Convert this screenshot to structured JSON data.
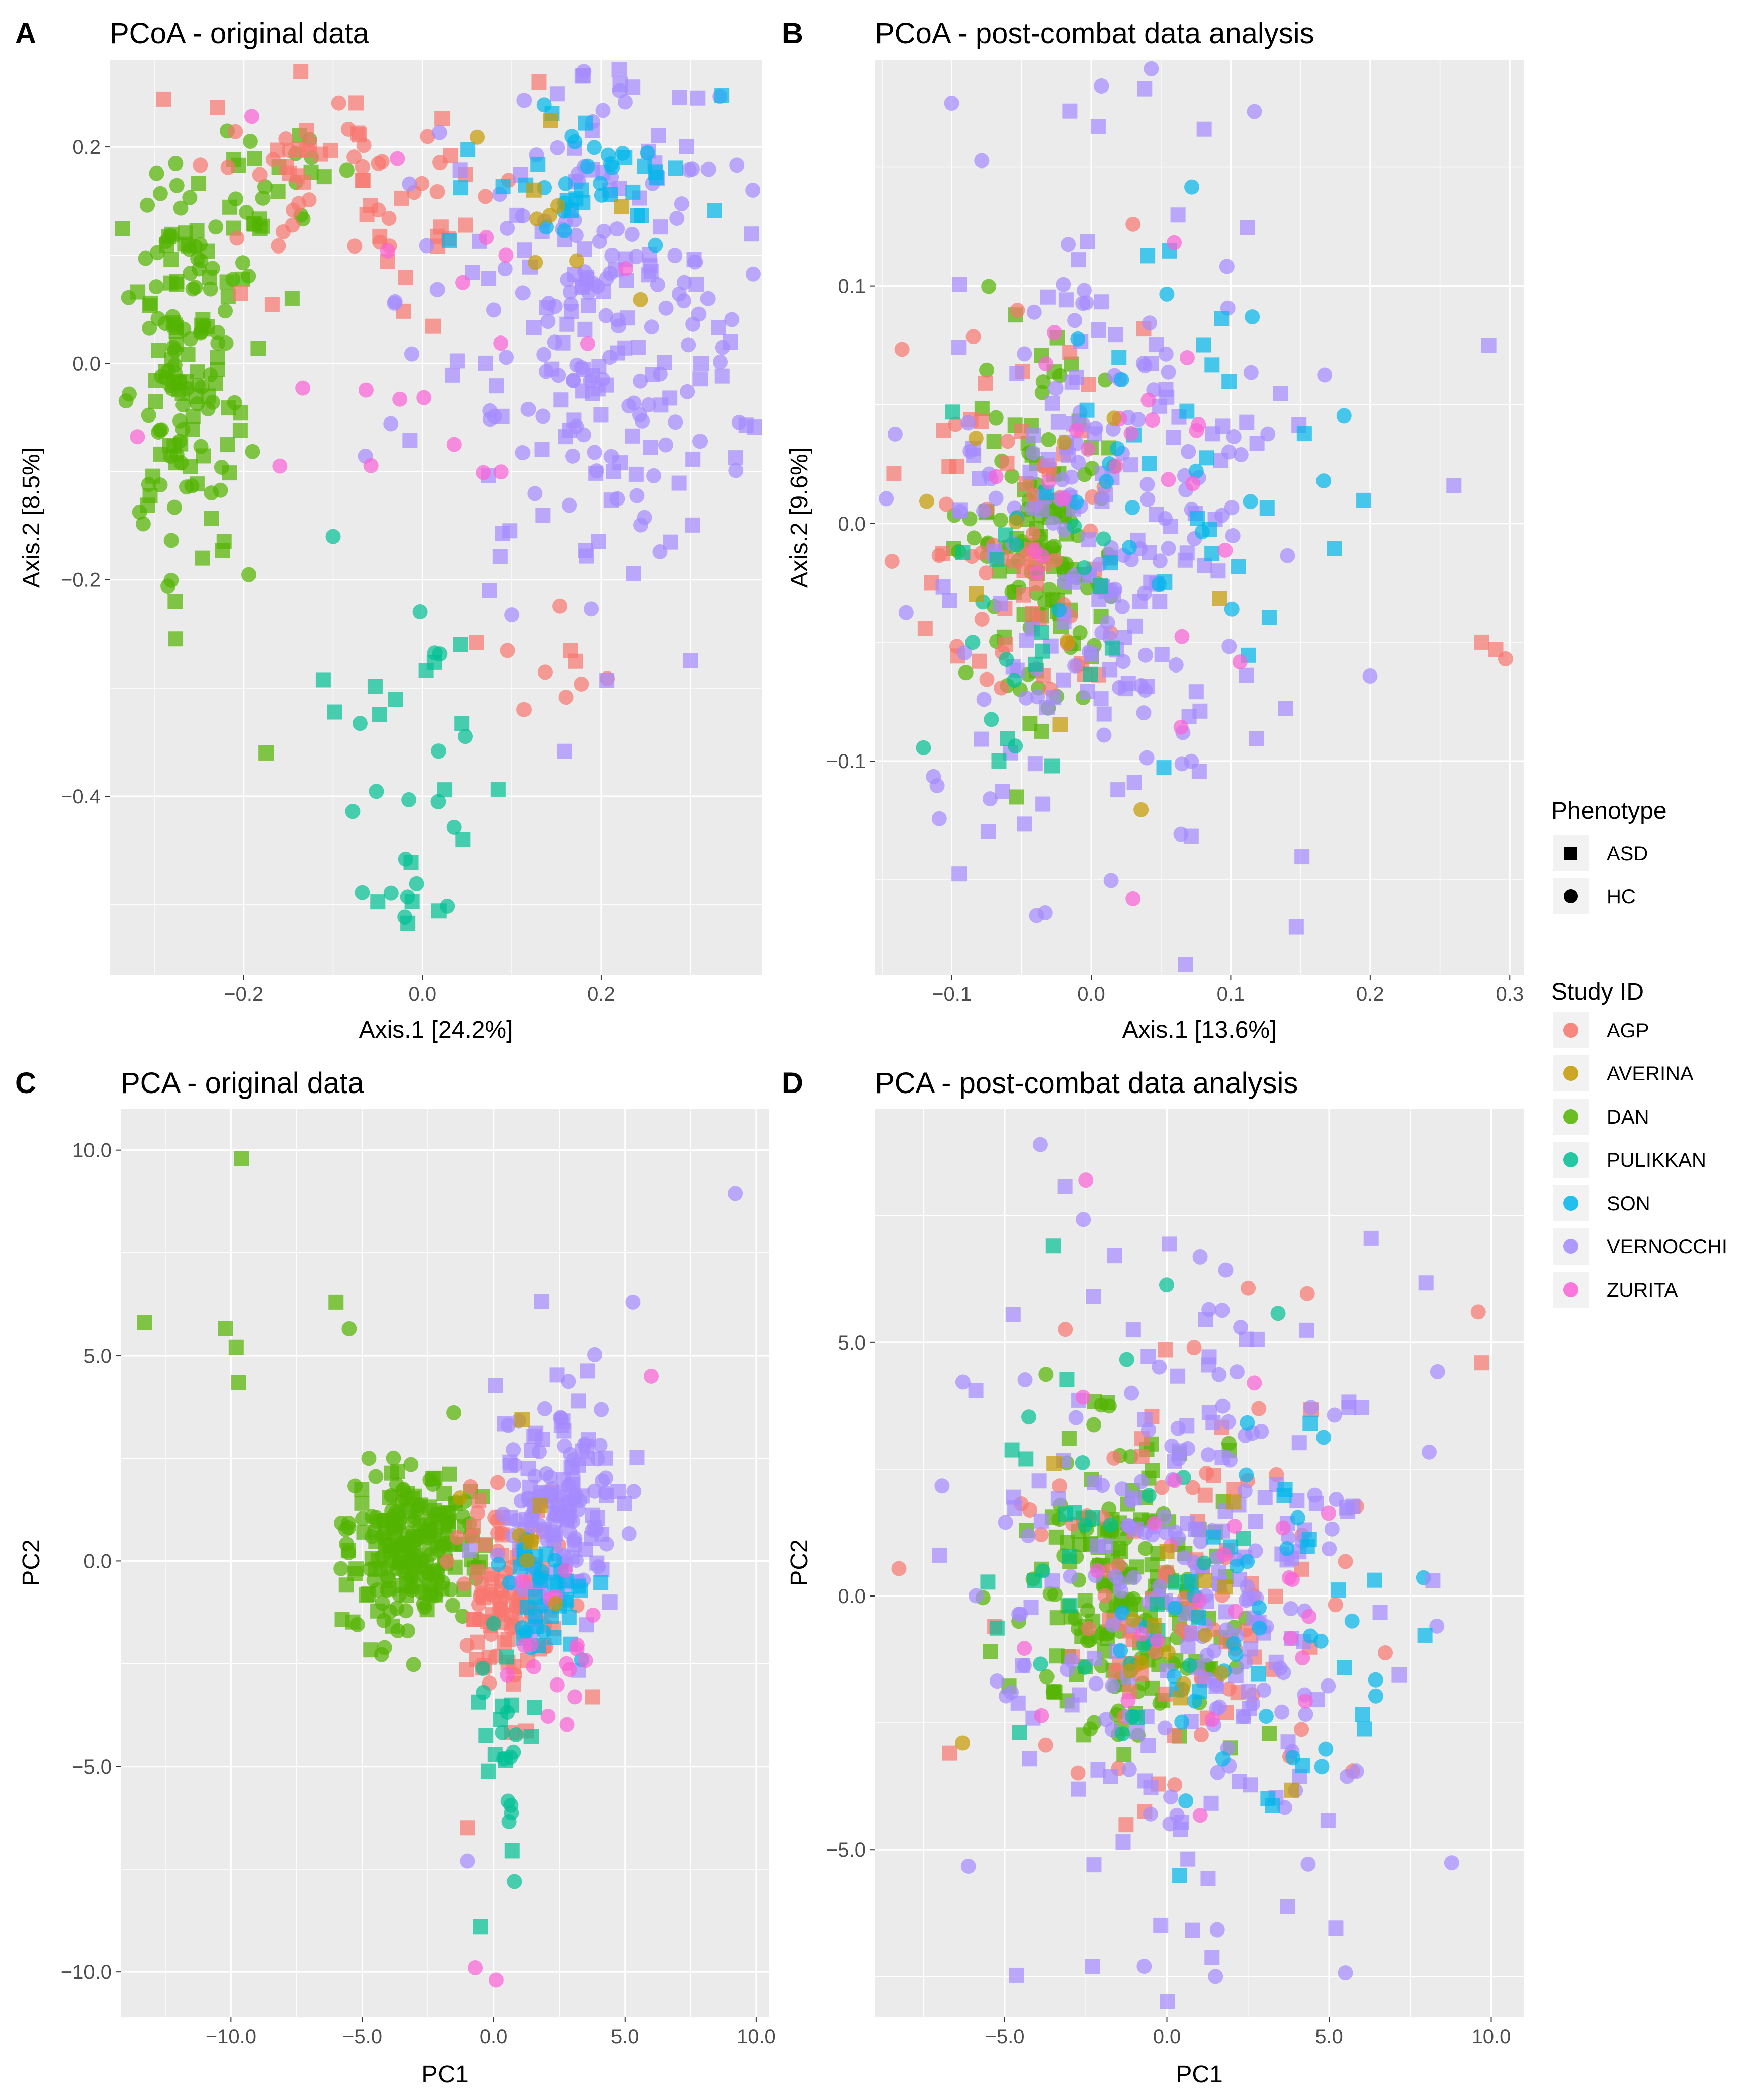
{
  "chart_data": [
    {
      "type": "scatter",
      "panel": "A",
      "title": "PCoA - original data",
      "xlabel": "Axis.1   [24.2%]",
      "ylabel": "Axis.2   [8.5%]",
      "xlim": [
        -0.35,
        0.38
      ],
      "ylim": [
        -0.565,
        0.28
      ],
      "xticks": [
        -0.2,
        0.0,
        0.2
      ],
      "xtick_labels": [
        "−0.2",
        "0.0",
        "0.2"
      ],
      "yticks": [
        0.2,
        0.0,
        -0.2,
        -0.4
      ],
      "ytick_labels": [
        "0.2",
        "0.0",
        "−0.2",
        "−0.4"
      ],
      "clusters": [
        {
          "study": "DAN",
          "shape": "mix",
          "cx": -0.265,
          "cy": 0.0,
          "sx": 0.035,
          "sy": 0.09,
          "n": 160
        },
        {
          "study": "DAN",
          "shape": "mix",
          "cx": -0.18,
          "cy": 0.15,
          "sx": 0.04,
          "sy": 0.04,
          "n": 30
        },
        {
          "study": "AGP",
          "shape": "mix",
          "cx": -0.08,
          "cy": 0.16,
          "sx": 0.08,
          "sy": 0.05,
          "n": 70
        },
        {
          "study": "AGP",
          "shape": "mix",
          "cx": 0.15,
          "cy": -0.27,
          "sx": 0.03,
          "sy": 0.03,
          "n": 10
        },
        {
          "study": "VERNOCCHI",
          "shape": "mix",
          "cx": 0.2,
          "cy": 0.05,
          "sx": 0.09,
          "sy": 0.13,
          "n": 260
        },
        {
          "study": "SON",
          "shape": "mix",
          "cx": 0.2,
          "cy": 0.17,
          "sx": 0.07,
          "sy": 0.04,
          "n": 45
        },
        {
          "study": "PULIKKAN",
          "shape": "mix",
          "cx": -0.02,
          "cy": -0.4,
          "sx": 0.04,
          "sy": 0.09,
          "n": 35
        },
        {
          "study": "ZURITA",
          "shape": "circle",
          "cx": 0.0,
          "cy": 0.05,
          "sx": 0.12,
          "sy": 0.1,
          "n": 20
        },
        {
          "study": "AVERINA",
          "shape": "mix",
          "cx": 0.15,
          "cy": 0.15,
          "sx": 0.05,
          "sy": 0.05,
          "n": 10
        }
      ],
      "points": [
        {
          "x": 0.13,
          "y": 0.26,
          "study": "AGP",
          "shape": "square"
        },
        {
          "x": -0.1,
          "y": -0.16,
          "study": "PULIKKAN",
          "shape": "circle"
        },
        {
          "x": -0.175,
          "y": -0.36,
          "study": "DAN",
          "shape": "square"
        },
        {
          "x": 0.045,
          "y": -0.44,
          "study": "PULIKKAN",
          "shape": "square"
        }
      ]
    },
    {
      "type": "scatter",
      "panel": "B",
      "title": "PCoA - post-combat data analysis",
      "xlabel": "Axis.1   [13.6%]",
      "ylabel": "Axis.2   [9.6%]",
      "xlim": [
        -0.155,
        0.31
      ],
      "ylim": [
        -0.19,
        0.195
      ],
      "xticks": [
        -0.1,
        0.0,
        0.1,
        0.2,
        0.3
      ],
      "xtick_labels": [
        "−0.1",
        "0.0",
        "0.1",
        "0.2",
        "0.3"
      ],
      "yticks": [
        0.1,
        0.0,
        -0.1
      ],
      "ytick_labels": [
        "0.1",
        "0.0",
        "−0.1"
      ],
      "clusters": [
        {
          "study": "DAN",
          "shape": "mix",
          "cx": -0.04,
          "cy": -0.01,
          "sx": 0.025,
          "sy": 0.035,
          "n": 140
        },
        {
          "study": "AGP",
          "shape": "mix",
          "cx": -0.05,
          "cy": 0.0,
          "sx": 0.035,
          "sy": 0.04,
          "n": 75
        },
        {
          "study": "VERNOCCHI",
          "shape": "mix",
          "cx": 0.02,
          "cy": 0.0,
          "sx": 0.07,
          "sy": 0.07,
          "n": 250
        },
        {
          "study": "SON",
          "shape": "mix",
          "cx": 0.05,
          "cy": 0.02,
          "sx": 0.05,
          "sy": 0.05,
          "n": 45
        },
        {
          "study": "PULIKKAN",
          "shape": "mix",
          "cx": -0.04,
          "cy": -0.06,
          "sx": 0.03,
          "sy": 0.03,
          "n": 25
        },
        {
          "study": "ZURITA",
          "shape": "circle",
          "cx": 0.0,
          "cy": 0.02,
          "sx": 0.06,
          "sy": 0.05,
          "n": 25
        },
        {
          "study": "AVERINA",
          "shape": "mix",
          "cx": 0.0,
          "cy": -0.02,
          "sx": 0.06,
          "sy": 0.04,
          "n": 10
        }
      ],
      "points": [
        {
          "x": 0.28,
          "y": -0.05,
          "study": "AGP",
          "shape": "square"
        },
        {
          "x": 0.29,
          "y": -0.053,
          "study": "AGP",
          "shape": "square"
        },
        {
          "x": 0.297,
          "y": -0.057,
          "study": "AGP",
          "shape": "circle"
        },
        {
          "x": 0.285,
          "y": 0.075,
          "study": "VERNOCCHI",
          "shape": "square"
        },
        {
          "x": 0.26,
          "y": 0.016,
          "study": "VERNOCCHI",
          "shape": "square"
        },
        {
          "x": -0.1,
          "y": 0.177,
          "study": "VERNOCCHI",
          "shape": "circle"
        },
        {
          "x": 0.03,
          "y": -0.158,
          "study": "ZURITA",
          "shape": "circle"
        },
        {
          "x": 0.03,
          "y": 0.126,
          "study": "AGP",
          "shape": "circle"
        }
      ]
    },
    {
      "type": "scatter",
      "panel": "C",
      "title": "PCA - original data",
      "xlabel": "PC1",
      "ylabel": "PC2",
      "xlim": [
        -14.2,
        10.5
      ],
      "ylim": [
        -11.1,
        11.0
      ],
      "xticks": [
        -10.0,
        -5.0,
        0.0,
        5.0,
        10.0
      ],
      "xtick_labels": [
        "−10.0",
        "−5.0",
        "0.0",
        "5.0",
        "10.0"
      ],
      "yticks": [
        10.0,
        5.0,
        0.0,
        -5.0,
        -10.0
      ],
      "ytick_labels": [
        "10.0",
        "5.0",
        "0.0",
        "−5.0",
        "−10.0"
      ],
      "clusters": [
        {
          "study": "DAN",
          "shape": "mix",
          "cx": -3.2,
          "cy": 0.3,
          "sx": 1.2,
          "sy": 1.0,
          "n": 220
        },
        {
          "study": "AGP",
          "shape": "mix",
          "cx": 0.6,
          "cy": -0.8,
          "sx": 1.0,
          "sy": 1.1,
          "n": 110
        },
        {
          "study": "VERNOCCHI",
          "shape": "mix",
          "cx": 2.5,
          "cy": 1.4,
          "sx": 1.2,
          "sy": 1.3,
          "n": 160
        },
        {
          "study": "SON",
          "shape": "mix",
          "cx": 2.2,
          "cy": -0.8,
          "sx": 0.9,
          "sy": 0.8,
          "n": 40
        },
        {
          "study": "PULIKKAN",
          "shape": "mix",
          "cx": 0.4,
          "cy": -4.5,
          "sx": 0.6,
          "sy": 1.2,
          "n": 25
        },
        {
          "study": "ZURITA",
          "shape": "circle",
          "cx": 2.0,
          "cy": -2.0,
          "sx": 1.2,
          "sy": 1.2,
          "n": 18
        },
        {
          "study": "AVERINA",
          "shape": "mix",
          "cx": 1.5,
          "cy": 0.8,
          "sx": 1.0,
          "sy": 0.8,
          "n": 8
        }
      ],
      "points": [
        {
          "x": -9.6,
          "y": 9.8,
          "study": "DAN",
          "shape": "square"
        },
        {
          "x": -13.3,
          "y": 5.8,
          "study": "DAN",
          "shape": "square"
        },
        {
          "x": -10.2,
          "y": 5.65,
          "study": "DAN",
          "shape": "square"
        },
        {
          "x": -9.8,
          "y": 5.2,
          "study": "DAN",
          "shape": "square"
        },
        {
          "x": -9.7,
          "y": 4.35,
          "study": "DAN",
          "shape": "square"
        },
        {
          "x": -6.0,
          "y": 6.3,
          "study": "DAN",
          "shape": "square"
        },
        {
          "x": -5.5,
          "y": 5.65,
          "study": "DAN",
          "shape": "circle"
        },
        {
          "x": 9.2,
          "y": 8.95,
          "study": "VERNOCCHI",
          "shape": "circle"
        },
        {
          "x": 5.3,
          "y": 6.3,
          "study": "VERNOCCHI",
          "shape": "circle"
        },
        {
          "x": 6.0,
          "y": 4.5,
          "study": "ZURITA",
          "shape": "circle"
        },
        {
          "x": 0.8,
          "y": -7.8,
          "study": "PULIKKAN",
          "shape": "circle"
        },
        {
          "x": -0.5,
          "y": -8.9,
          "study": "PULIKKAN",
          "shape": "square"
        },
        {
          "x": 0.1,
          "y": -10.2,
          "study": "ZURITA",
          "shape": "circle"
        },
        {
          "x": -0.7,
          "y": -9.9,
          "study": "ZURITA",
          "shape": "circle"
        },
        {
          "x": -1.0,
          "y": -6.5,
          "study": "AGP",
          "shape": "square"
        },
        {
          "x": -1.0,
          "y": -7.3,
          "study": "VERNOCCHI",
          "shape": "circle"
        }
      ]
    },
    {
      "type": "scatter",
      "panel": "D",
      "title": "PCA - post-combat data analysis",
      "xlabel": "PC1",
      "ylabel": "PC2",
      "xlim": [
        -9.0,
        11.0
      ],
      "ylim": [
        -8.3,
        9.6
      ],
      "xticks": [
        -5.0,
        0.0,
        5.0,
        10.0
      ],
      "xtick_labels": [
        "−5.0",
        "0.0",
        "5.0",
        "10.0"
      ],
      "yticks": [
        5.0,
        0.0,
        -5.0
      ],
      "ytick_labels": [
        "5.0",
        "0.0",
        "−5.0"
      ],
      "clusters": [
        {
          "study": "DAN",
          "shape": "mix",
          "cx": -1.2,
          "cy": 0.2,
          "sx": 1.6,
          "sy": 1.4,
          "n": 200
        },
        {
          "study": "AGP",
          "shape": "mix",
          "cx": 0.2,
          "cy": -0.3,
          "sx": 2.8,
          "sy": 2.3,
          "n": 100
        },
        {
          "study": "VERNOCCHI",
          "shape": "mix",
          "cx": 0.5,
          "cy": 0.0,
          "sx": 3.0,
          "sy": 2.9,
          "n": 270
        },
        {
          "study": "SON",
          "shape": "mix",
          "cx": 3.0,
          "cy": -0.8,
          "sx": 2.0,
          "sy": 1.9,
          "n": 55
        },
        {
          "study": "PULIKKAN",
          "shape": "mix",
          "cx": -1.0,
          "cy": 0.8,
          "sx": 2.3,
          "sy": 2.0,
          "n": 35
        },
        {
          "study": "ZURITA",
          "shape": "circle",
          "cx": 1.0,
          "cy": 0.5,
          "sx": 2.3,
          "sy": 2.2,
          "n": 25
        },
        {
          "study": "AVERINA",
          "shape": "mix",
          "cx": 0.5,
          "cy": 0.0,
          "sx": 2.5,
          "sy": 2.0,
          "n": 15
        }
      ],
      "points": [
        {
          "x": -3.9,
          "y": 8.9,
          "study": "VERNOCCHI",
          "shape": "circle"
        },
        {
          "x": -2.5,
          "y": 8.2,
          "study": "ZURITA",
          "shape": "circle"
        },
        {
          "x": -3.5,
          "y": 6.9,
          "study": "PULIKKAN",
          "shape": "square"
        },
        {
          "x": 9.6,
          "y": 5.6,
          "study": "AGP",
          "shape": "circle"
        },
        {
          "x": 9.7,
          "y": 4.6,
          "study": "AGP",
          "shape": "square"
        },
        {
          "x": -6.3,
          "y": -2.9,
          "study": "AVERINA",
          "shape": "circle"
        },
        {
          "x": -6.7,
          "y": -3.1,
          "study": "AGP",
          "shape": "square"
        },
        {
          "x": -0.7,
          "y": -7.3,
          "study": "VERNOCCHI",
          "shape": "circle"
        },
        {
          "x": 1.5,
          "y": -7.5,
          "study": "VERNOCCHI",
          "shape": "circle"
        },
        {
          "x": -2.3,
          "y": -7.3,
          "study": "VERNOCCHI",
          "shape": "square"
        },
        {
          "x": 8.2,
          "y": 0.3,
          "study": "VERNOCCHI",
          "shape": "square"
        }
      ]
    }
  ],
  "legend": {
    "phenotype_title": "Phenotype",
    "phenotype": [
      {
        "label": "ASD",
        "shape": "square"
      },
      {
        "label": "HC",
        "shape": "circle"
      }
    ],
    "study_title": "Study ID",
    "studies": [
      {
        "label": "AGP",
        "color": "#F8766D"
      },
      {
        "label": "AVERINA",
        "color": "#C49A00"
      },
      {
        "label": "DAN",
        "color": "#53B400"
      },
      {
        "label": "PULIKKAN",
        "color": "#00C094"
      },
      {
        "label": "SON",
        "color": "#00B6EB"
      },
      {
        "label": "VERNOCCHI",
        "color": "#A58AFF"
      },
      {
        "label": "ZURITA",
        "color": "#FB61D7"
      }
    ]
  }
}
